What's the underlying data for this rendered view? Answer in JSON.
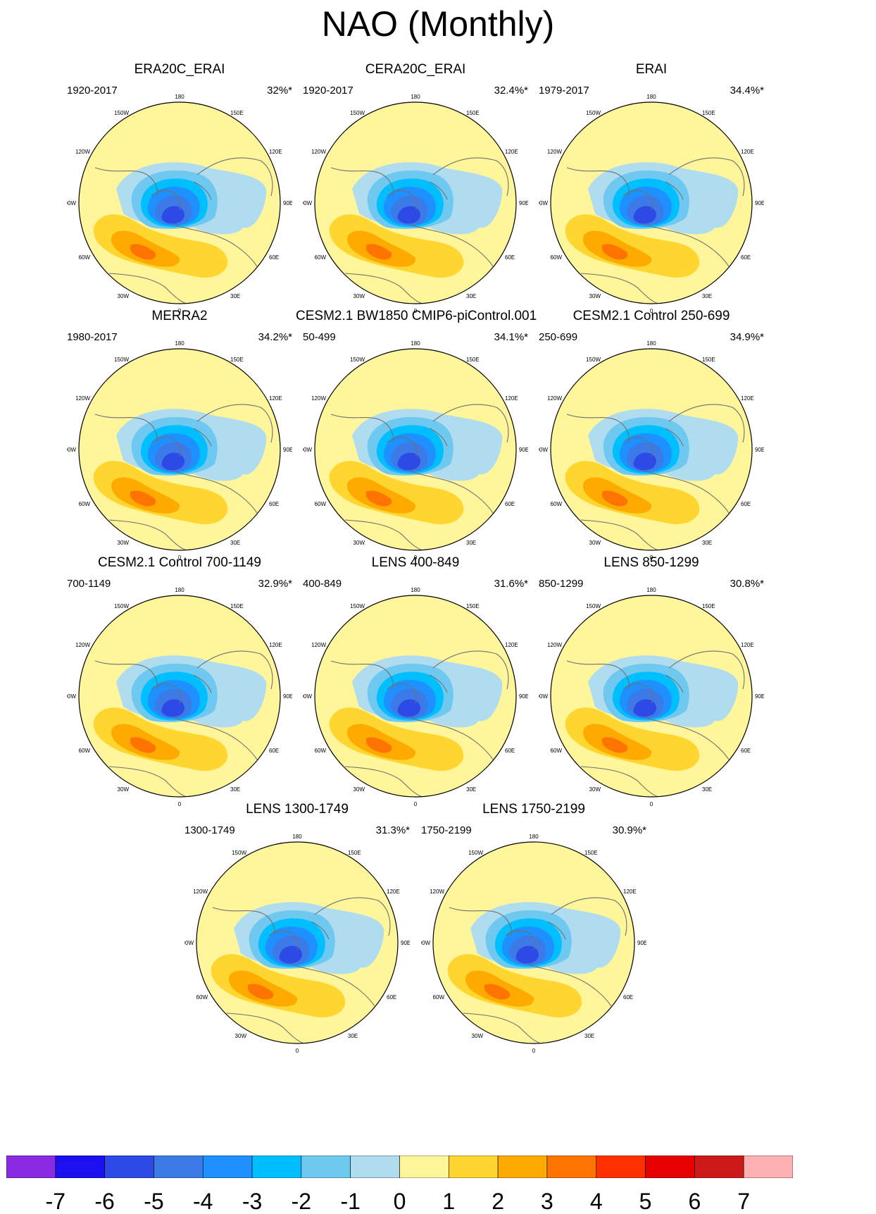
{
  "title": "NAO (Monthly)",
  "panels": [
    {
      "title": "ERA20C_ERAI",
      "period": "1920-2017",
      "percent": "32%*"
    },
    {
      "title": "CERA20C_ERAI",
      "period": "1920-2017",
      "percent": "32.4%*"
    },
    {
      "title": "ERAI",
      "period": "1979-2017",
      "percent": "34.4%*"
    },
    {
      "title": "MERRA2",
      "period": "1980-2017",
      "percent": "34.2%*"
    },
    {
      "title": "CESM2.1 BW1850 CMIP6-piControl.001",
      "period": "50-499",
      "percent": "34.1%*"
    },
    {
      "title": "CESM2.1 Control 250-699",
      "period": "250-699",
      "percent": "34.9%*"
    },
    {
      "title": "CESM2.1 Control 700-1149",
      "period": "700-1149",
      "percent": "32.9%*"
    },
    {
      "title": "LENS 400-849",
      "period": "400-849",
      "percent": "31.6%*"
    },
    {
      "title": "LENS 850-1299",
      "period": "850-1299",
      "percent": "30.8%*"
    },
    {
      "title": "LENS 1300-1749",
      "period": "1300-1749",
      "percent": "31.3%*"
    },
    {
      "title": "LENS 1750-2199",
      "period": "1750-2199",
      "percent": "30.9%*"
    }
  ],
  "longitude_labels": {
    "top": "180",
    "bottom": "0",
    "left_90": "90W",
    "right_90": "90E",
    "w30": "30W",
    "w60": "60W",
    "w120": "120W",
    "w150": "150W",
    "e30": "30E",
    "e60": "60E",
    "e120": "120E",
    "e150": "150E"
  },
  "colorbar": {
    "labels": [
      "-7",
      "-6",
      "-5",
      "-4",
      "-3",
      "-2",
      "-1",
      "0",
      "1",
      "2",
      "3",
      "4",
      "5",
      "6",
      "7"
    ],
    "colors": [
      "#8a2be2",
      "#1a10f0",
      "#2e4ae6",
      "#3c7ae8",
      "#1e90ff",
      "#00bfff",
      "#6fc8f0",
      "#b0dcf0",
      "#fff59a",
      "#ffd530",
      "#ffaa00",
      "#ff7400",
      "#ff3000",
      "#e60000",
      "#cc1a1a",
      "#ffb0b0"
    ]
  }
}
